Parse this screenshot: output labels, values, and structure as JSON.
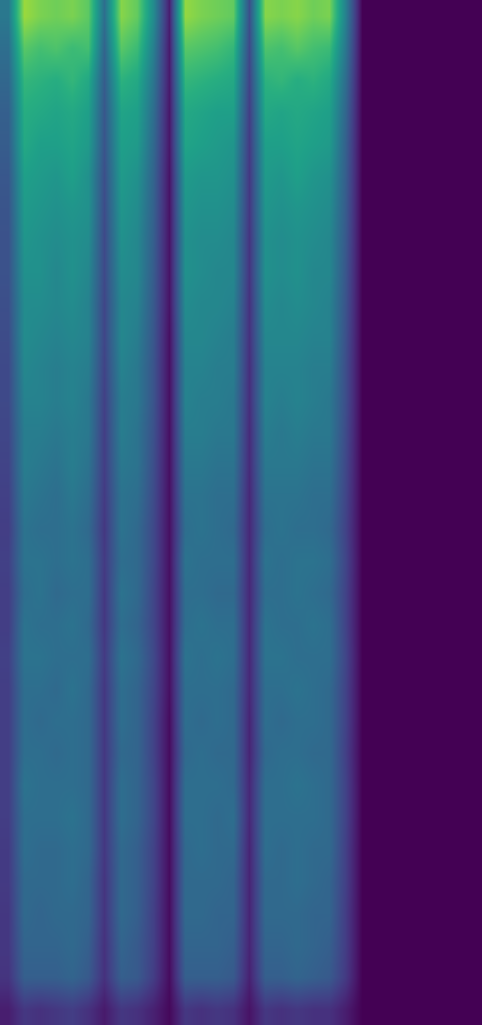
{
  "chart_data": {
    "type": "heatmap",
    "tick_labels": false,
    "grid": false,
    "zlim": [
      0,
      1
    ],
    "cells": [
      [
        0.4,
        0.85,
        0.8,
        0.78,
        0.8,
        0.75,
        0.36,
        0.82,
        0.76,
        0.48,
        0.08,
        0.84,
        0.8,
        0.78,
        0.76,
        0.24,
        0.82,
        0.8,
        0.82,
        0.78,
        0.8,
        0.44,
        0,
        0,
        0,
        0,
        0,
        0,
        0,
        0
      ],
      [
        0.36,
        0.74,
        0.7,
        0.72,
        0.68,
        0.7,
        0.32,
        0.74,
        0.68,
        0.43,
        0.07,
        0.74,
        0.72,
        0.7,
        0.66,
        0.22,
        0.72,
        0.7,
        0.74,
        0.7,
        0.68,
        0.4,
        0,
        0,
        0,
        0,
        0,
        0,
        0,
        0
      ],
      [
        0.33,
        0.66,
        0.64,
        0.62,
        0.66,
        0.6,
        0.29,
        0.64,
        0.6,
        0.39,
        0.07,
        0.66,
        0.64,
        0.62,
        0.6,
        0.2,
        0.64,
        0.66,
        0.62,
        0.64,
        0.6,
        0.36,
        0,
        0,
        0,
        0,
        0,
        0,
        0,
        0
      ],
      [
        0.3,
        0.62,
        0.6,
        0.58,
        0.6,
        0.56,
        0.27,
        0.58,
        0.56,
        0.36,
        0.06,
        0.6,
        0.58,
        0.56,
        0.56,
        0.18,
        0.6,
        0.58,
        0.6,
        0.58,
        0.56,
        0.33,
        0,
        0,
        0,
        0,
        0,
        0,
        0,
        0
      ],
      [
        0.29,
        0.6,
        0.56,
        0.56,
        0.58,
        0.54,
        0.26,
        0.56,
        0.54,
        0.34,
        0.06,
        0.58,
        0.56,
        0.54,
        0.52,
        0.17,
        0.56,
        0.56,
        0.58,
        0.56,
        0.54,
        0.31,
        0,
        0,
        0,
        0,
        0,
        0,
        0,
        0
      ],
      [
        0.27,
        0.56,
        0.54,
        0.52,
        0.56,
        0.5,
        0.24,
        0.54,
        0.5,
        0.32,
        0.05,
        0.54,
        0.52,
        0.52,
        0.5,
        0.16,
        0.54,
        0.52,
        0.56,
        0.52,
        0.5,
        0.3,
        0,
        0,
        0,
        0,
        0,
        0,
        0,
        0
      ],
      [
        0.26,
        0.54,
        0.52,
        0.5,
        0.52,
        0.5,
        0.23,
        0.52,
        0.48,
        0.31,
        0.05,
        0.52,
        0.5,
        0.5,
        0.48,
        0.16,
        0.52,
        0.5,
        0.52,
        0.5,
        0.48,
        0.29,
        0,
        0,
        0,
        0,
        0,
        0,
        0,
        0
      ],
      [
        0.25,
        0.52,
        0.5,
        0.48,
        0.5,
        0.48,
        0.22,
        0.5,
        0.46,
        0.3,
        0.05,
        0.5,
        0.48,
        0.48,
        0.46,
        0.15,
        0.5,
        0.48,
        0.5,
        0.48,
        0.46,
        0.28,
        0,
        0,
        0,
        0,
        0,
        0,
        0,
        0
      ],
      [
        0.25,
        0.5,
        0.5,
        0.46,
        0.5,
        0.46,
        0.22,
        0.48,
        0.46,
        0.29,
        0.05,
        0.5,
        0.48,
        0.46,
        0.46,
        0.15,
        0.5,
        0.48,
        0.5,
        0.46,
        0.46,
        0.27,
        0,
        0,
        0,
        0,
        0,
        0,
        0,
        0
      ],
      [
        0.24,
        0.48,
        0.48,
        0.46,
        0.48,
        0.44,
        0.21,
        0.46,
        0.44,
        0.28,
        0.05,
        0.48,
        0.46,
        0.46,
        0.44,
        0.14,
        0.48,
        0.46,
        0.48,
        0.46,
        0.44,
        0.26,
        0,
        0,
        0,
        0,
        0,
        0,
        0,
        0
      ],
      [
        0.23,
        0.48,
        0.46,
        0.44,
        0.46,
        0.44,
        0.21,
        0.46,
        0.42,
        0.27,
        0.04,
        0.46,
        0.46,
        0.44,
        0.42,
        0.14,
        0.46,
        0.46,
        0.46,
        0.44,
        0.44,
        0.25,
        0,
        0,
        0,
        0,
        0,
        0,
        0,
        0
      ],
      [
        0.22,
        0.46,
        0.44,
        0.42,
        0.44,
        0.42,
        0.2,
        0.44,
        0.4,
        0.26,
        0.04,
        0.44,
        0.44,
        0.42,
        0.42,
        0.13,
        0.44,
        0.44,
        0.44,
        0.42,
        0.42,
        0.24,
        0,
        0,
        0,
        0,
        0,
        0,
        0,
        0
      ],
      [
        0.22,
        0.44,
        0.44,
        0.42,
        0.44,
        0.4,
        0.19,
        0.42,
        0.4,
        0.26,
        0.04,
        0.44,
        0.42,
        0.42,
        0.4,
        0.13,
        0.44,
        0.42,
        0.44,
        0.42,
        0.4,
        0.24,
        0,
        0,
        0,
        0,
        0,
        0,
        0,
        0
      ],
      [
        0.21,
        0.42,
        0.42,
        0.4,
        0.42,
        0.4,
        0.18,
        0.42,
        0.38,
        0.25,
        0.04,
        0.42,
        0.42,
        0.4,
        0.4,
        0.12,
        0.42,
        0.4,
        0.42,
        0.4,
        0.4,
        0.23,
        0,
        0,
        0,
        0,
        0,
        0,
        0,
        0
      ],
      [
        0.2,
        0.42,
        0.4,
        0.38,
        0.42,
        0.38,
        0.18,
        0.4,
        0.38,
        0.24,
        0.04,
        0.4,
        0.4,
        0.38,
        0.38,
        0.12,
        0.4,
        0.4,
        0.4,
        0.38,
        0.38,
        0.22,
        0,
        0,
        0,
        0,
        0,
        0,
        0,
        0
      ],
      [
        0.19,
        0.4,
        0.38,
        0.36,
        0.4,
        0.36,
        0.17,
        0.38,
        0.36,
        0.23,
        0.04,
        0.38,
        0.38,
        0.36,
        0.36,
        0.11,
        0.38,
        0.38,
        0.38,
        0.36,
        0.36,
        0.21,
        0,
        0,
        0,
        0,
        0,
        0,
        0,
        0
      ],
      [
        0.18,
        0.38,
        0.36,
        0.36,
        0.38,
        0.34,
        0.16,
        0.38,
        0.34,
        0.22,
        0.04,
        0.36,
        0.38,
        0.36,
        0.34,
        0.11,
        0.36,
        0.38,
        0.36,
        0.36,
        0.34,
        0.2,
        0,
        0,
        0,
        0,
        0,
        0,
        0,
        0
      ],
      [
        0.19,
        0.38,
        0.38,
        0.36,
        0.38,
        0.36,
        0.17,
        0.36,
        0.34,
        0.22,
        0.04,
        0.38,
        0.36,
        0.36,
        0.36,
        0.11,
        0.38,
        0.36,
        0.38,
        0.38,
        0.36,
        0.21,
        0,
        0,
        0,
        0,
        0,
        0,
        0,
        0
      ],
      [
        0.18,
        0.36,
        0.38,
        0.34,
        0.36,
        0.36,
        0.16,
        0.38,
        0.34,
        0.21,
        0.04,
        0.36,
        0.36,
        0.34,
        0.34,
        0.11,
        0.36,
        0.36,
        0.38,
        0.36,
        0.34,
        0.2,
        0,
        0,
        0,
        0,
        0,
        0,
        0,
        0
      ],
      [
        0.18,
        0.38,
        0.36,
        0.36,
        0.38,
        0.34,
        0.16,
        0.36,
        0.32,
        0.21,
        0.04,
        0.36,
        0.38,
        0.36,
        0.36,
        0.11,
        0.38,
        0.36,
        0.36,
        0.38,
        0.36,
        0.2,
        0,
        0,
        0,
        0,
        0,
        0,
        0,
        0
      ],
      [
        0.19,
        0.38,
        0.38,
        0.36,
        0.36,
        0.36,
        0.17,
        0.38,
        0.34,
        0.22,
        0.04,
        0.38,
        0.36,
        0.38,
        0.36,
        0.11,
        0.38,
        0.38,
        0.36,
        0.36,
        0.36,
        0.21,
        0,
        0,
        0,
        0,
        0,
        0,
        0,
        0
      ],
      [
        0.18,
        0.36,
        0.36,
        0.34,
        0.38,
        0.34,
        0.16,
        0.36,
        0.32,
        0.21,
        0.04,
        0.36,
        0.36,
        0.36,
        0.34,
        0.11,
        0.36,
        0.36,
        0.38,
        0.36,
        0.34,
        0.2,
        0,
        0,
        0,
        0,
        0,
        0,
        0,
        0
      ],
      [
        0.18,
        0.36,
        0.34,
        0.36,
        0.36,
        0.34,
        0.16,
        0.36,
        0.32,
        0.2,
        0.03,
        0.36,
        0.34,
        0.36,
        0.34,
        0.1,
        0.36,
        0.34,
        0.36,
        0.36,
        0.34,
        0.2,
        0,
        0,
        0,
        0,
        0,
        0,
        0,
        0
      ],
      [
        0.18,
        0.36,
        0.36,
        0.34,
        0.36,
        0.34,
        0.16,
        0.34,
        0.32,
        0.2,
        0.03,
        0.34,
        0.36,
        0.34,
        0.34,
        0.1,
        0.34,
        0.36,
        0.36,
        0.34,
        0.34,
        0.19,
        0,
        0,
        0,
        0,
        0,
        0,
        0,
        0
      ],
      [
        0.18,
        0.38,
        0.36,
        0.36,
        0.36,
        0.34,
        0.16,
        0.36,
        0.32,
        0.21,
        0.03,
        0.36,
        0.36,
        0.36,
        0.34,
        0.11,
        0.36,
        0.36,
        0.38,
        0.36,
        0.34,
        0.2,
        0,
        0,
        0,
        0,
        0,
        0,
        0,
        0
      ],
      [
        0.18,
        0.36,
        0.36,
        0.36,
        0.38,
        0.34,
        0.16,
        0.36,
        0.32,
        0.21,
        0.03,
        0.36,
        0.36,
        0.34,
        0.36,
        0.11,
        0.36,
        0.36,
        0.36,
        0.36,
        0.34,
        0.2,
        0,
        0,
        0,
        0,
        0,
        0,
        0,
        0
      ],
      [
        0.17,
        0.36,
        0.34,
        0.34,
        0.36,
        0.34,
        0.16,
        0.34,
        0.3,
        0.2,
        0.03,
        0.34,
        0.36,
        0.34,
        0.34,
        0.1,
        0.36,
        0.34,
        0.36,
        0.34,
        0.34,
        0.19,
        0,
        0,
        0,
        0,
        0,
        0,
        0,
        0
      ],
      [
        0.17,
        0.34,
        0.34,
        0.34,
        0.36,
        0.32,
        0.15,
        0.34,
        0.3,
        0.2,
        0.03,
        0.34,
        0.34,
        0.34,
        0.32,
        0.1,
        0.34,
        0.34,
        0.36,
        0.34,
        0.32,
        0.19,
        0,
        0,
        0,
        0,
        0,
        0,
        0,
        0
      ],
      [
        0.16,
        0.34,
        0.32,
        0.34,
        0.34,
        0.32,
        0.15,
        0.34,
        0.3,
        0.19,
        0.03,
        0.34,
        0.34,
        0.32,
        0.32,
        0.1,
        0.34,
        0.34,
        0.34,
        0.32,
        0.32,
        0.18,
        0,
        0,
        0,
        0,
        0,
        0,
        0,
        0
      ],
      [
        0.16,
        0.32,
        0.32,
        0.32,
        0.34,
        0.3,
        0.14,
        0.32,
        0.28,
        0.19,
        0.03,
        0.32,
        0.32,
        0.32,
        0.3,
        0.1,
        0.32,
        0.32,
        0.34,
        0.32,
        0.3,
        0.18,
        0,
        0,
        0,
        0,
        0,
        0,
        0,
        0
      ],
      [
        0.15,
        0.3,
        0.3,
        0.3,
        0.32,
        0.28,
        0.14,
        0.3,
        0.28,
        0.18,
        0.03,
        0.3,
        0.3,
        0.3,
        0.28,
        0.09,
        0.3,
        0.3,
        0.32,
        0.3,
        0.28,
        0.17,
        0,
        0,
        0,
        0,
        0,
        0,
        0,
        0
      ],
      [
        0.08,
        0.16,
        0.14,
        0.16,
        0.18,
        0.14,
        0.07,
        0.16,
        0.14,
        0.09,
        0.02,
        0.16,
        0.14,
        0.16,
        0.14,
        0.05,
        0.16,
        0.14,
        0.16,
        0.14,
        0.14,
        0.08,
        0,
        0,
        0,
        0,
        0,
        0,
        0,
        0
      ]
    ]
  }
}
